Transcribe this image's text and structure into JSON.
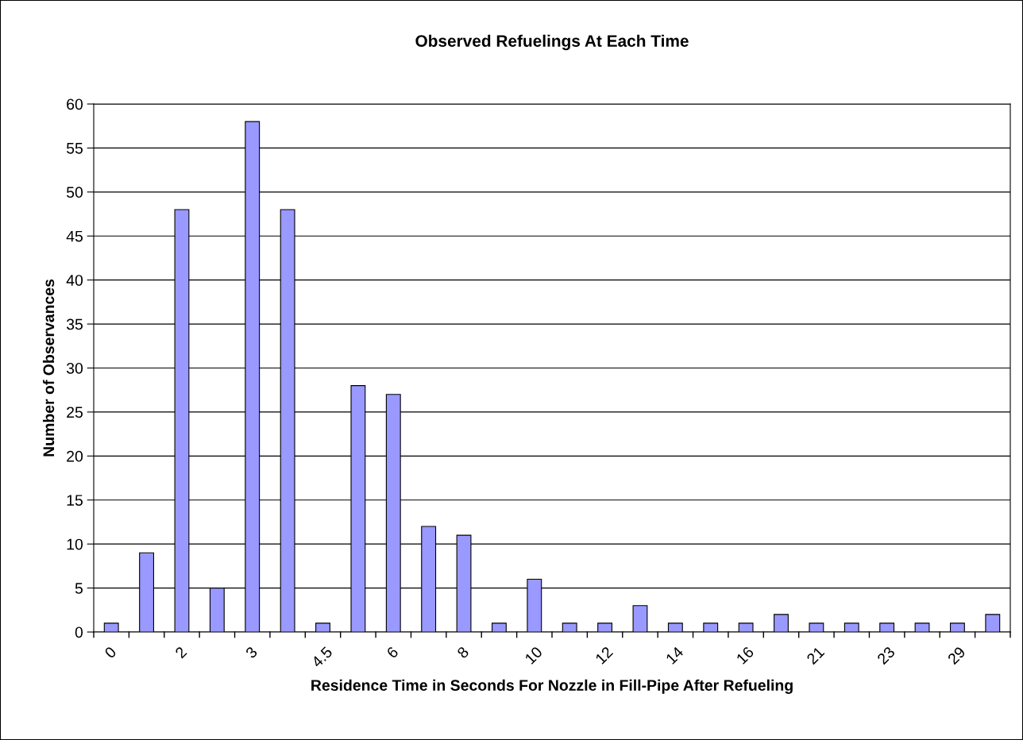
{
  "chart_data": {
    "type": "bar",
    "title": "Observed Refuelings At Each Time",
    "xlabel": "Residence Time in Seconds For Nozzle in Fill-Pipe After Refueling",
    "ylabel": "Number of Observances",
    "categories": [
      "0",
      null,
      "2",
      null,
      "3",
      null,
      "4.5",
      null,
      "6",
      null,
      "8",
      null,
      "10",
      null,
      "12",
      null,
      "14",
      null,
      "16",
      null,
      "21",
      null,
      "23",
      null,
      "29",
      null
    ],
    "values": [
      1,
      9,
      48,
      5,
      58,
      48,
      1,
      28,
      27,
      12,
      11,
      1,
      6,
      1,
      1,
      3,
      1,
      1,
      1,
      2,
      1,
      1,
      1,
      1,
      1,
      2
    ],
    "color": "#9999ff",
    "ylim": [
      0,
      60
    ],
    "yticks": [
      0,
      5,
      10,
      15,
      20,
      25,
      30,
      35,
      40,
      45,
      50,
      55,
      60
    ],
    "grid": "y"
  }
}
